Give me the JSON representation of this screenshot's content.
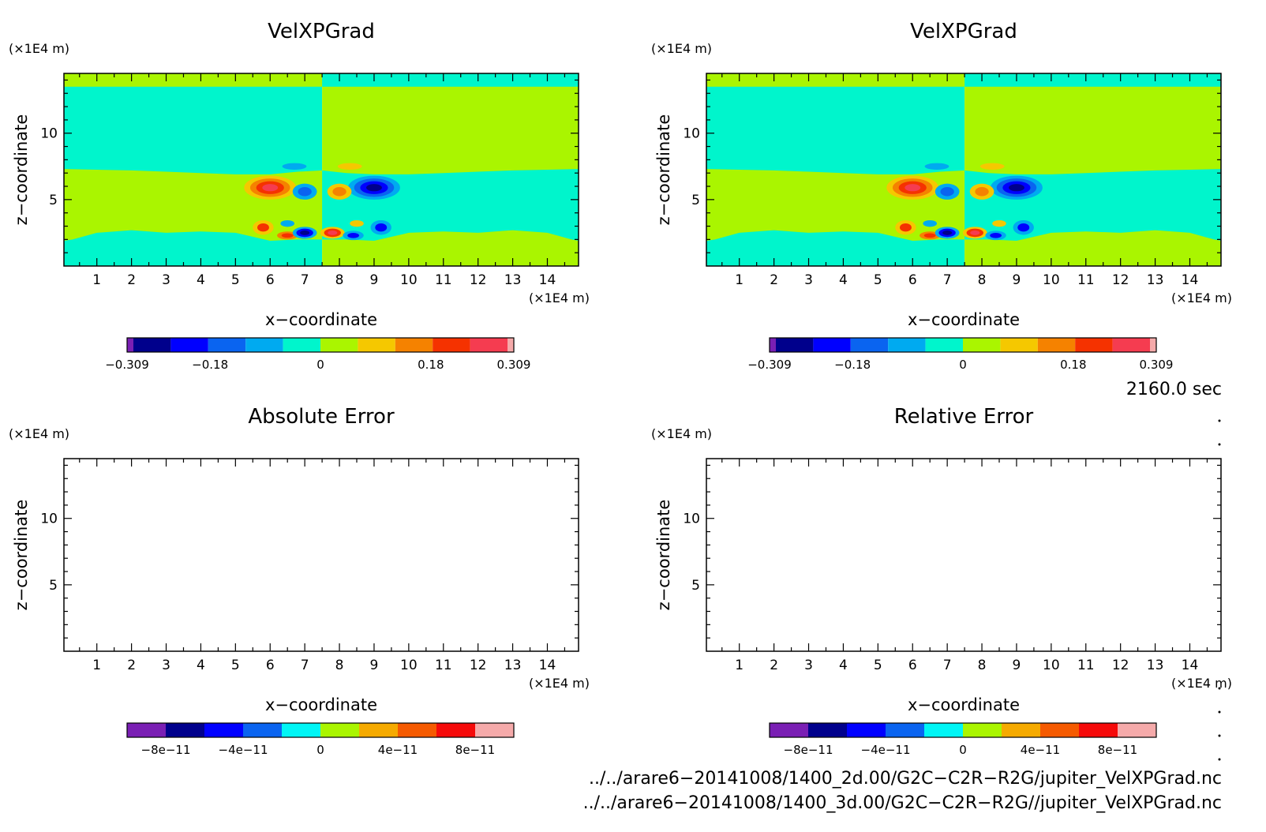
{
  "panels": [
    {
      "id": "velx-left",
      "title": "VelXPGrad",
      "xlabel": "x−coordinate",
      "ylabel": "z−coordinate",
      "xunit": "(×1E4 m)",
      "yunit": "(×1E4 m)",
      "xticks": [
        "1",
        "2",
        "3",
        "4",
        "5",
        "6",
        "7",
        "8",
        "9",
        "10",
        "11",
        "12",
        "13",
        "14"
      ],
      "yticks": [
        "5",
        "10"
      ],
      "colorbar_labels": [
        "−0.309",
        "−0.18",
        "0",
        "0.18",
        "0.309"
      ],
      "filled": true
    },
    {
      "id": "velx-right",
      "title": "VelXPGrad",
      "xlabel": "x−coordinate",
      "ylabel": "z−coordinate",
      "xunit": "(×1E4 m)",
      "yunit": "(×1E4 m)",
      "xticks": [
        "1",
        "2",
        "3",
        "4",
        "5",
        "6",
        "7",
        "8",
        "9",
        "10",
        "11",
        "12",
        "13",
        "14"
      ],
      "yticks": [
        "5",
        "10"
      ],
      "colorbar_labels": [
        "−0.309",
        "−0.18",
        "0",
        "0.18",
        "0.309"
      ],
      "filled": true
    },
    {
      "id": "abs-error",
      "title": "Absolute Error",
      "xlabel": "x−coordinate",
      "ylabel": "z−coordinate",
      "xunit": "(×1E4 m)",
      "yunit": "(×1E4 m)",
      "xticks": [
        "1",
        "2",
        "3",
        "4",
        "5",
        "6",
        "7",
        "8",
        "9",
        "10",
        "11",
        "12",
        "13",
        "14"
      ],
      "yticks": [
        "5",
        "10"
      ],
      "colorbar_labels": [
        "−8e−11",
        "−4e−11",
        "0",
        "4e−11",
        "8e−11"
      ],
      "filled": false
    },
    {
      "id": "rel-error",
      "title": "Relative Error",
      "xlabel": "x−coordinate",
      "ylabel": "z−coordinate",
      "xunit": "(×1E4 m)",
      "yunit": "(×1E4 m)",
      "xticks": [
        "1",
        "2",
        "3",
        "4",
        "5",
        "6",
        "7",
        "8",
        "9",
        "10",
        "11",
        "12",
        "13",
        "14"
      ],
      "yticks": [
        "5",
        "10"
      ],
      "colorbar_labels": [
        "−8e−11",
        "−4e−11",
        "0",
        "4e−11",
        "8e−11"
      ],
      "filled": false
    }
  ],
  "colors": {
    "velx_levels": [
      "#7a1fb4",
      "#00008c",
      "#0000ff",
      "#0a64f0",
      "#00aaf0",
      "#00f5cc",
      "#aaf500",
      "#f5c800",
      "#f58200",
      "#f53200",
      "#f53c50",
      "#f5aaaa"
    ],
    "err_levels": [
      "#7a1fb4",
      "#00008c",
      "#0000ff",
      "#0a64f0",
      "#00f5f5",
      "#aaf500",
      "#f5aa00",
      "#f55a00",
      "#f50a0a",
      "#f5aaaa"
    ],
    "bg_cyan": "#00f5cc",
    "bg_green": "#aaf500"
  },
  "info": {
    "time": "2160.0 sec",
    "file1": "../../arare6−20141008/1400_2d.00/G2C−C2R−R2G/jupiter_VelXPGrad.nc",
    "file2": "../../arare6−20141008/1400_3d.00/G2C−C2R−R2G//jupiter_VelXPGrad.nc"
  },
  "chart_data": [
    {
      "type": "heatmap",
      "title": "VelXPGrad",
      "xlabel": "x−coordinate",
      "ylabel": "z−coordinate",
      "xlim": [
        0.05,
        14.9
      ],
      "ylim": [
        0,
        14.5
      ],
      "xticks": [
        1,
        2,
        3,
        4,
        5,
        6,
        7,
        8,
        9,
        10,
        11,
        12,
        13,
        14
      ],
      "yticks": [
        5,
        10
      ],
      "color_range": [
        -0.309,
        0.309
      ],
      "colorbar_ticks": [
        -0.309,
        -0.18,
        0,
        0.18,
        0.309
      ],
      "background": {
        "left_x_lt_7.5": "cyan(~0) above z~7.3, green(~0.03) below",
        "right_x_gt_7.5": "green above z~7.3, cyan below"
      },
      "features": [
        {
          "x": 6.0,
          "z": 5.9,
          "sign": "positive",
          "peak": 0.28
        },
        {
          "x": 9.0,
          "z": 5.9,
          "sign": "negative",
          "peak": -0.28
        },
        {
          "x": 7.0,
          "z": 2.6,
          "sign": "negative",
          "peak": -0.25
        },
        {
          "x": 7.8,
          "z": 2.5,
          "sign": "positive",
          "peak": 0.25
        }
      ]
    },
    {
      "type": "heatmap",
      "title": "VelXPGrad",
      "xlabel": "x−coordinate",
      "ylabel": "z−coordinate",
      "xlim": [
        0.05,
        14.9
      ],
      "ylim": [
        0,
        14.5
      ],
      "color_range": [
        -0.309,
        0.309
      ],
      "colorbar_ticks": [
        -0.309,
        -0.18,
        0,
        0.18,
        0.309
      ]
    },
    {
      "type": "heatmap",
      "title": "Absolute Error",
      "xlabel": "x−coordinate",
      "ylabel": "z−coordinate",
      "xlim": [
        0.05,
        14.9
      ],
      "ylim": [
        0,
        14.5
      ],
      "color_range": [
        -1e-10,
        1e-10
      ],
      "colorbar_ticks": [
        -8e-11,
        -4e-11,
        0,
        4e-11,
        8e-11
      ],
      "values": "empty"
    },
    {
      "type": "heatmap",
      "title": "Relative Error",
      "xlabel": "x−coordinate",
      "ylabel": "z−coordinate",
      "xlim": [
        0.05,
        14.9
      ],
      "ylim": [
        0,
        14.5
      ],
      "color_range": [
        -1e-10,
        1e-10
      ],
      "colorbar_ticks": [
        -8e-11,
        -4e-11,
        0,
        4e-11,
        8e-11
      ],
      "values": "empty"
    }
  ]
}
